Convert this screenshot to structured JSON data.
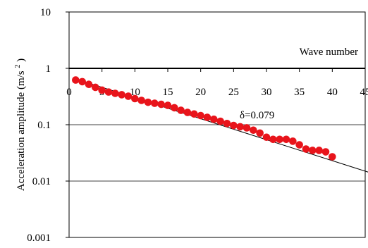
{
  "chart_data": {
    "type": "scatter",
    "title": "",
    "xlabel": "Wave number",
    "ylabel": "Acceleration amplitude",
    "yunit": "(m/s",
    "yunit_sup": "2",
    "yunit_close": ")",
    "xlim": [
      0,
      45
    ],
    "ylim": [
      0.001,
      10
    ],
    "yscale": "log",
    "x_ticks": [
      "0",
      "5",
      "10",
      "15",
      "20",
      "25",
      "30",
      "35",
      "40",
      "45"
    ],
    "y_ticks": [
      "10",
      "1",
      "0.1",
      "0.01",
      "0.001"
    ],
    "grid": "horizontal",
    "marker_color": "#e8141b",
    "annotation": "δ=0.079",
    "series": [
      {
        "x": [
          1,
          2,
          3,
          4,
          5,
          6,
          7,
          8,
          9,
          10,
          11,
          12,
          13,
          14,
          15,
          16,
          17,
          18,
          19,
          20,
          21,
          22,
          23,
          24,
          25,
          26,
          27,
          28,
          29,
          30,
          31,
          32,
          33,
          34,
          35,
          36,
          37,
          38,
          39,
          40
        ],
        "y": [
          0.62,
          0.58,
          0.52,
          0.46,
          0.41,
          0.38,
          0.36,
          0.34,
          0.32,
          0.29,
          0.27,
          0.25,
          0.24,
          0.23,
          0.22,
          0.2,
          0.18,
          0.165,
          0.155,
          0.145,
          0.135,
          0.125,
          0.115,
          0.105,
          0.097,
          0.092,
          0.088,
          0.08,
          0.071,
          0.06,
          0.055,
          0.055,
          0.055,
          0.051,
          0.044,
          0.037,
          0.035,
          0.035,
          0.033,
          0.027
        ]
      }
    ],
    "fit_line": {
      "x": [
        1,
        45
      ],
      "y": [
        0.65,
        0.015
      ]
    }
  }
}
